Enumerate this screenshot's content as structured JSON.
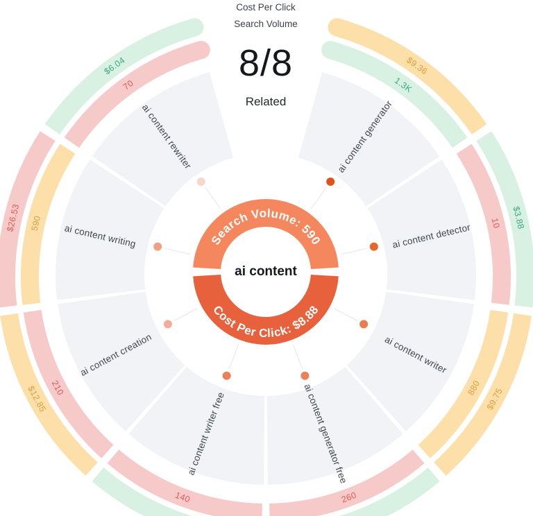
{
  "header": {
    "legend_cpc": "Cost Per Click",
    "legend_sv": "Search Volume",
    "count": "8/8",
    "related": "Related"
  },
  "chart_data": {
    "type": "radial-keyword-wheel",
    "center": {
      "keyword": "ai content",
      "search_volume": 590,
      "cost_per_click_usd": 8.88,
      "search_volume_label": "Search Volume: 590",
      "cost_per_click_label": "Cost Per Click: $8.88"
    },
    "rings": {
      "outer_metric": "Cost Per Click",
      "inner_metric": "Search Volume"
    },
    "related_shown": "8/8",
    "start_angle_deg": 15,
    "end_angle_deg": 345,
    "keywords": [
      {
        "label": "ai content generator",
        "search_volume": "1.3K",
        "sv_tone": "green",
        "cpc": "$9.36",
        "cpc_tone": "orange",
        "dot_color": "#e0521d"
      },
      {
        "label": "ai content detector",
        "search_volume": "10",
        "sv_tone": "pink",
        "cpc": "$3.88",
        "cpc_tone": "green",
        "dot_color": "#e7662c"
      },
      {
        "label": "ai content writer",
        "search_volume": "880",
        "sv_tone": "orange",
        "cpc": "$9.75",
        "cpc_tone": "orange",
        "dot_color": "#eb7c50"
      },
      {
        "label": "ai content generator free",
        "search_volume": "260",
        "sv_tone": "pink",
        "cpc": "",
        "cpc_tone": "green",
        "dot_color": "#ec8058"
      },
      {
        "label": "ai content writer free",
        "search_volume": "140",
        "sv_tone": "pink",
        "cpc": "",
        "cpc_tone": "green",
        "dot_color": "#ec8058"
      },
      {
        "label": "ai content creation",
        "search_volume": "210",
        "sv_tone": "pink",
        "cpc": "$12.85",
        "cpc_tone": "orange",
        "dot_color": "#f1ad96"
      },
      {
        "label": "ai content writing",
        "search_volume": "590",
        "sv_tone": "orange",
        "cpc": "$26.53",
        "cpc_tone": "pink",
        "dot_color": "#efa088"
      },
      {
        "label": "ai content rewriter",
        "search_volume": "70",
        "sv_tone": "pink",
        "cpc": "$6.04",
        "cpc_tone": "green",
        "dot_color": "#f7d6cd"
      }
    ],
    "palette": {
      "band": {
        "green": "#d9f1e3",
        "pink": "#f7caca",
        "orange": "#fcdfa9"
      },
      "text": {
        "green": "#3aa87c",
        "pink": "#e05a5a",
        "orange": "#df9f3c"
      },
      "sector_fill": "#f1f3f6",
      "donut_top": "#f5875f",
      "donut_bottom": "#e7613c",
      "keyword_label": "#3f4650",
      "spoke": "#eaeaea"
    }
  }
}
